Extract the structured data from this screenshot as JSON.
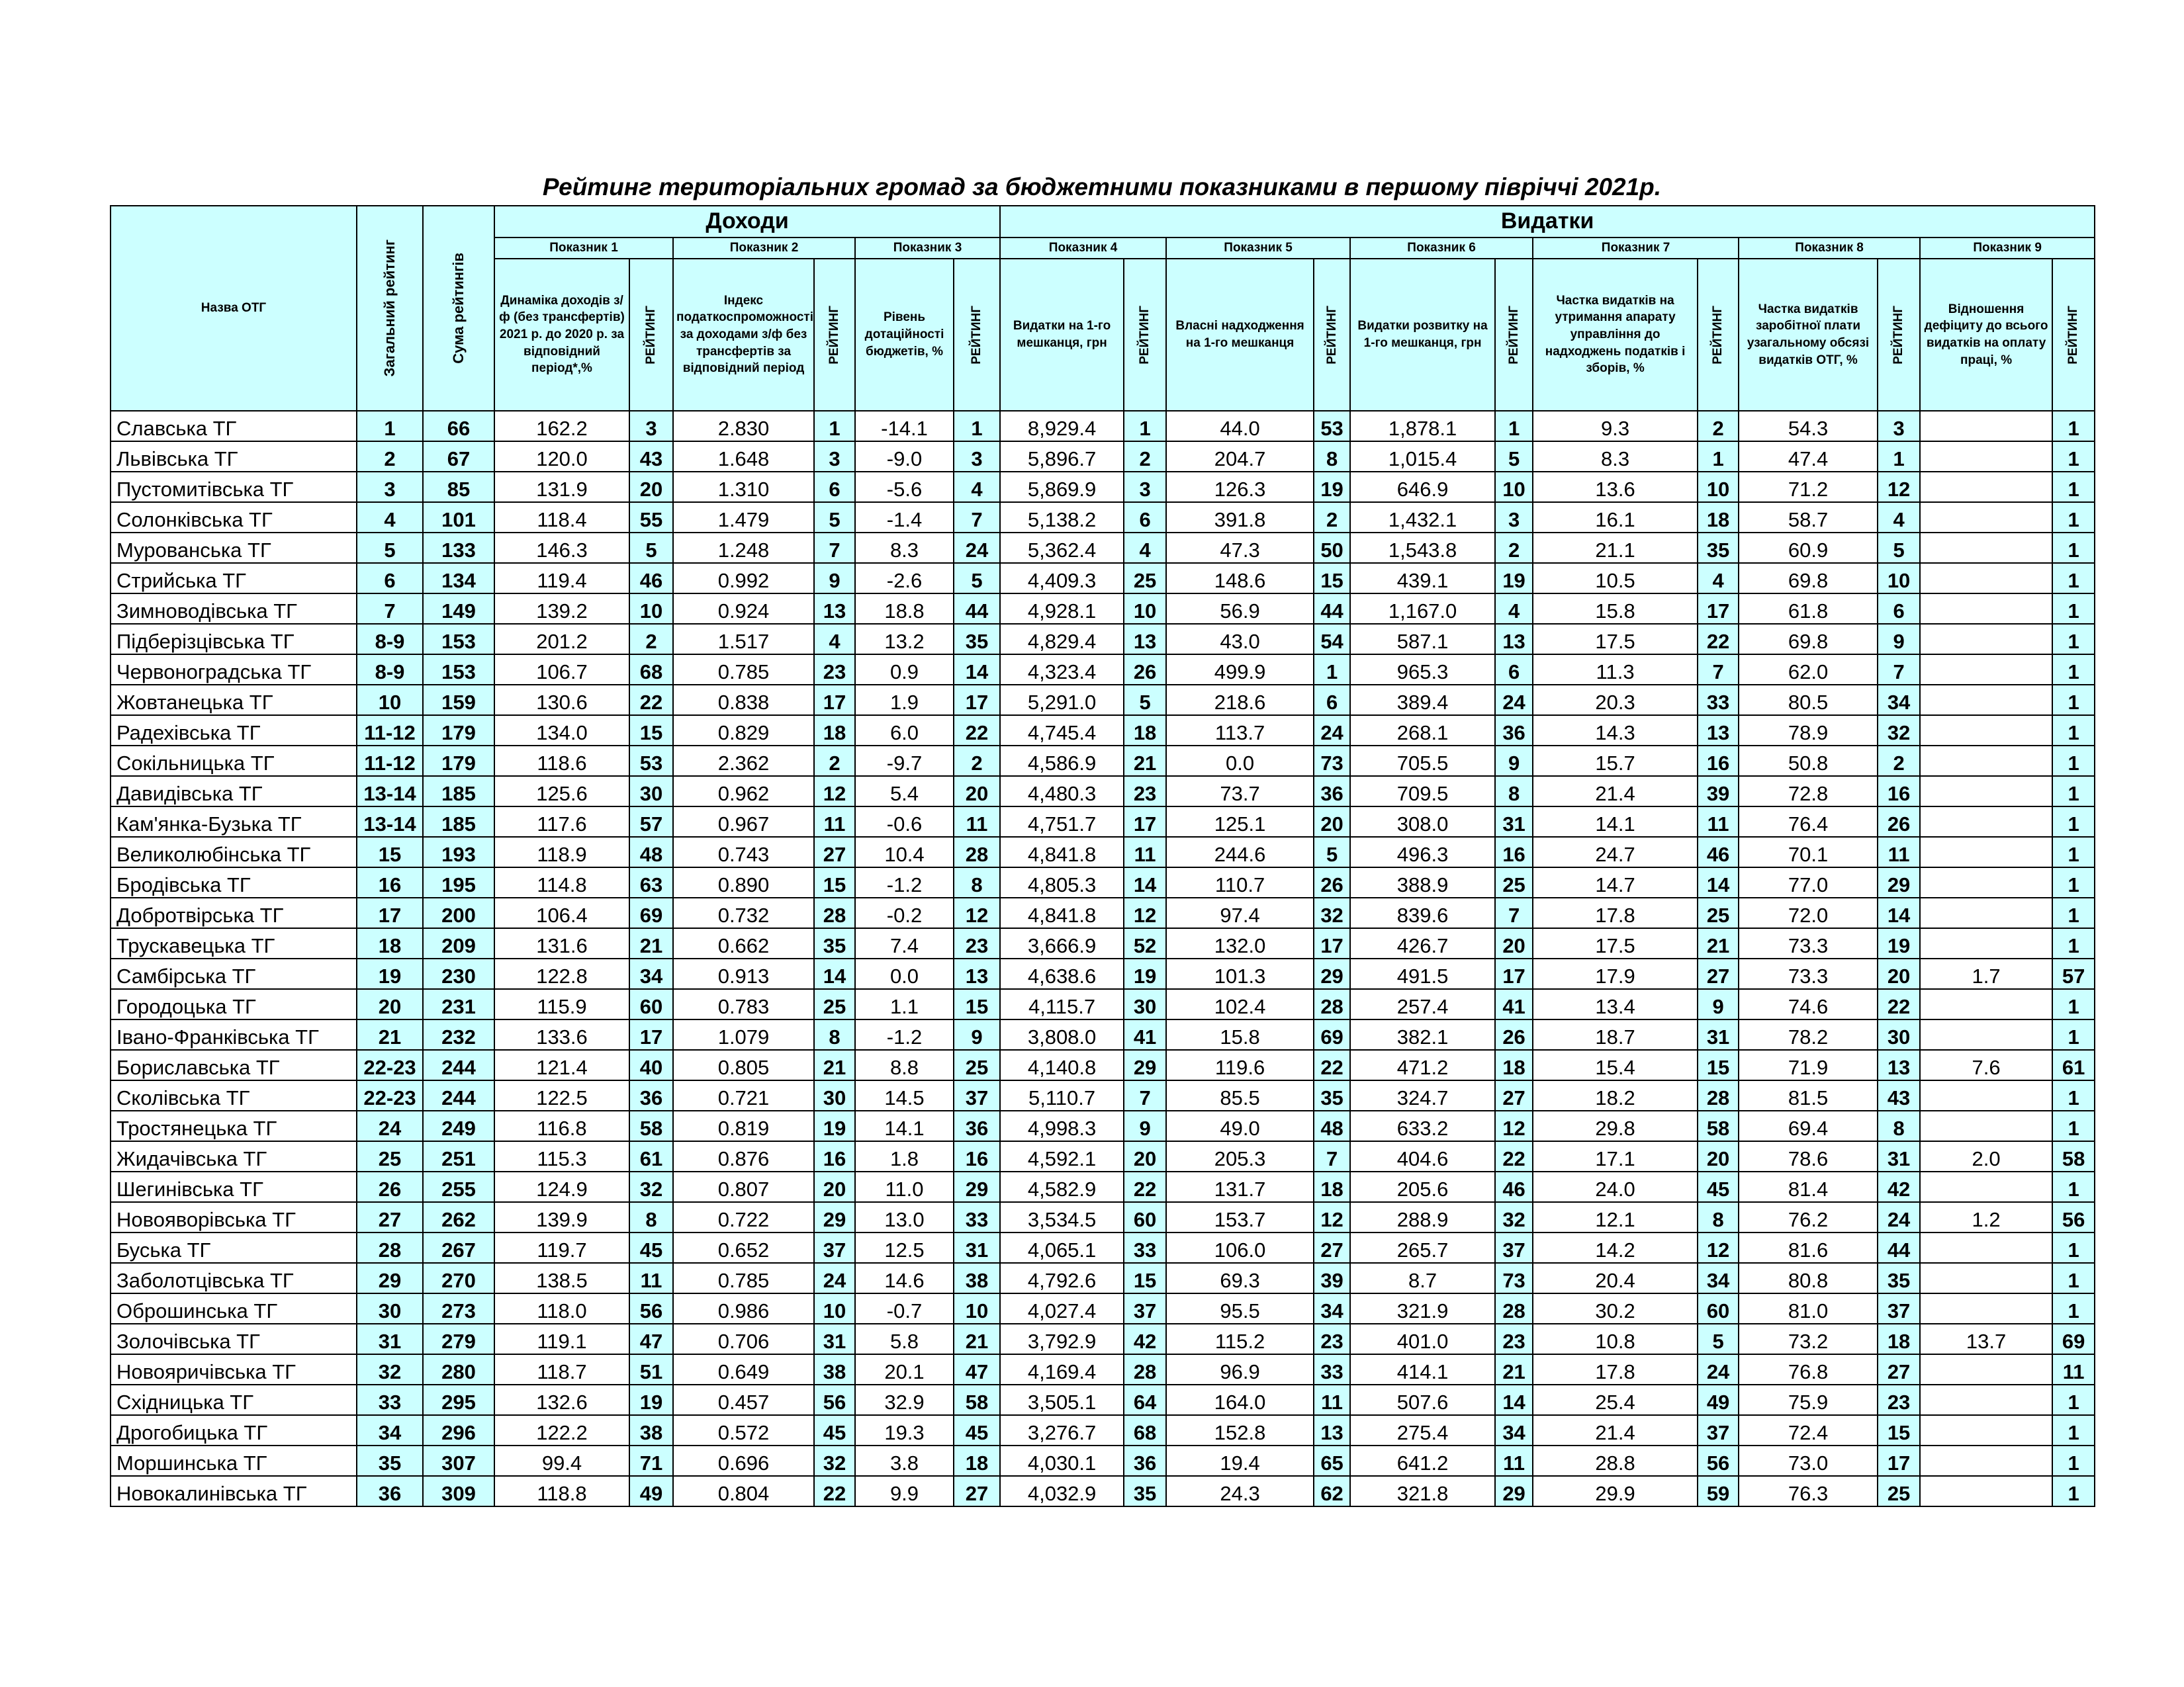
{
  "title": "Рейтинг територіальних громад за бюджетними показниками в першому півріччі 2021р.",
  "header": {
    "name": "Назва ОТГ",
    "overall": "Загальний рейтинг",
    "sum": "Сума рейтингів",
    "groups": [
      {
        "label": "Доходи",
        "span": 3
      },
      {
        "label": "Видатки",
        "span": 6
      }
    ],
    "indicators": [
      {
        "label": "Показник 1",
        "column": "Динаміка доходів з/ф (без трансфертів) 2021 р. до 2020 р. за відповідний період*,%",
        "rank": "РЕЙТИНГ"
      },
      {
        "label": "Показник 2",
        "column": "Індекс податкоспроможності за доходами з/ф без трансфертів за відповідний період",
        "rank": "РЕЙТИНГ"
      },
      {
        "label": "Показник 3",
        "column": "Рівень дотаційності бюджетів, %",
        "rank": "РЕЙТИНГ"
      },
      {
        "label": "Показник 4",
        "column": "Видатки на 1-го мешканця, грн",
        "rank": "РЕЙТИНГ"
      },
      {
        "label": "Показник 5",
        "column": "Власні надходження на 1-го мешканця",
        "rank": "РЕЙТИНГ"
      },
      {
        "label": "Показник 6",
        "column": "Видатки розвитку на 1-го мешканця, грн",
        "rank": "РЕЙТИНГ"
      },
      {
        "label": "Показник 7",
        "column": "Частка видатків на утримання апарату управління до надходжень податків і зборів, %",
        "rank": "РЕЙТИНГ"
      },
      {
        "label": "Показник 8",
        "column": "Частка видатків заробітної плати узагальному обсязі видатків ОТГ, %",
        "rank": "РЕЙТИНГ"
      },
      {
        "label": "Показник 9",
        "column": "Відношення дефіциту до всього видатків на оплату праці, %",
        "rank": "РЕЙТИНГ"
      }
    ]
  },
  "table": {
    "rows": [
      [
        "Славська ТГ",
        "1",
        "66",
        "162.2",
        "3",
        "2.830",
        "1",
        "-14.1",
        "1",
        "8,929.4",
        "1",
        "44.0",
        "53",
        "1,878.1",
        "1",
        "9.3",
        "2",
        "54.3",
        "3",
        null,
        "1"
      ],
      [
        "Львівська ТГ",
        "2",
        "67",
        "120.0",
        "43",
        "1.648",
        "3",
        "-9.0",
        "3",
        "5,896.7",
        "2",
        "204.7",
        "8",
        "1,015.4",
        "5",
        "8.3",
        "1",
        "47.4",
        "1",
        null,
        "1"
      ],
      [
        "Пустомитівська ТГ",
        "3",
        "85",
        "131.9",
        "20",
        "1.310",
        "6",
        "-5.6",
        "4",
        "5,869.9",
        "3",
        "126.3",
        "19",
        "646.9",
        "10",
        "13.6",
        "10",
        "71.2",
        "12",
        null,
        "1"
      ],
      [
        "Солонківська ТГ",
        "4",
        "101",
        "118.4",
        "55",
        "1.479",
        "5",
        "-1.4",
        "7",
        "5,138.2",
        "6",
        "391.8",
        "2",
        "1,432.1",
        "3",
        "16.1",
        "18",
        "58.7",
        "4",
        null,
        "1"
      ],
      [
        "Мурованська ТГ",
        "5",
        "133",
        "146.3",
        "5",
        "1.248",
        "7",
        "8.3",
        "24",
        "5,362.4",
        "4",
        "47.3",
        "50",
        "1,543.8",
        "2",
        "21.1",
        "35",
        "60.9",
        "5",
        null,
        "1"
      ],
      [
        "Стрийська ТГ",
        "6",
        "134",
        "119.4",
        "46",
        "0.992",
        "9",
        "-2.6",
        "5",
        "4,409.3",
        "25",
        "148.6",
        "15",
        "439.1",
        "19",
        "10.5",
        "4",
        "69.8",
        "10",
        null,
        "1"
      ],
      [
        "Зимноводівська ТГ",
        "7",
        "149",
        "139.2",
        "10",
        "0.924",
        "13",
        "18.8",
        "44",
        "4,928.1",
        "10",
        "56.9",
        "44",
        "1,167.0",
        "4",
        "15.8",
        "17",
        "61.8",
        "6",
        null,
        "1"
      ],
      [
        "Підберізцівська ТГ",
        "8-9",
        "153",
        "201.2",
        "2",
        "1.517",
        "4",
        "13.2",
        "35",
        "4,829.4",
        "13",
        "43.0",
        "54",
        "587.1",
        "13",
        "17.5",
        "22",
        "69.8",
        "9",
        null,
        "1"
      ],
      [
        "Червоноградська ТГ",
        "8-9",
        "153",
        "106.7",
        "68",
        "0.785",
        "23",
        "0.9",
        "14",
        "4,323.4",
        "26",
        "499.9",
        "1",
        "965.3",
        "6",
        "11.3",
        "7",
        "62.0",
        "7",
        null,
        "1"
      ],
      [
        "Жовтанецька ТГ",
        "10",
        "159",
        "130.6",
        "22",
        "0.838",
        "17",
        "1.9",
        "17",
        "5,291.0",
        "5",
        "218.6",
        "6",
        "389.4",
        "24",
        "20.3",
        "33",
        "80.5",
        "34",
        null,
        "1"
      ],
      [
        "Радехівська ТГ",
        "11-12",
        "179",
        "134.0",
        "15",
        "0.829",
        "18",
        "6.0",
        "22",
        "4,745.4",
        "18",
        "113.7",
        "24",
        "268.1",
        "36",
        "14.3",
        "13",
        "78.9",
        "32",
        null,
        "1"
      ],
      [
        "Сокільницька ТГ",
        "11-12",
        "179",
        "118.6",
        "53",
        "2.362",
        "2",
        "-9.7",
        "2",
        "4,586.9",
        "21",
        "0.0",
        "73",
        "705.5",
        "9",
        "15.7",
        "16",
        "50.8",
        "2",
        null,
        "1"
      ],
      [
        "Давидівська ТГ",
        "13-14",
        "185",
        "125.6",
        "30",
        "0.962",
        "12",
        "5.4",
        "20",
        "4,480.3",
        "23",
        "73.7",
        "36",
        "709.5",
        "8",
        "21.4",
        "39",
        "72.8",
        "16",
        null,
        "1"
      ],
      [
        "Кам'янка-Бузька ТГ",
        "13-14",
        "185",
        "117.6",
        "57",
        "0.967",
        "11",
        "-0.6",
        "11",
        "4,751.7",
        "17",
        "125.1",
        "20",
        "308.0",
        "31",
        "14.1",
        "11",
        "76.4",
        "26",
        null,
        "1"
      ],
      [
        "Великолюбінська ТГ",
        "15",
        "193",
        "118.9",
        "48",
        "0.743",
        "27",
        "10.4",
        "28",
        "4,841.8",
        "11",
        "244.6",
        "5",
        "496.3",
        "16",
        "24.7",
        "46",
        "70.1",
        "11",
        null,
        "1"
      ],
      [
        "Бродівська ТГ",
        "16",
        "195",
        "114.8",
        "63",
        "0.890",
        "15",
        "-1.2",
        "8",
        "4,805.3",
        "14",
        "110.7",
        "26",
        "388.9",
        "25",
        "14.7",
        "14",
        "77.0",
        "29",
        null,
        "1"
      ],
      [
        "Добротвірська ТГ",
        "17",
        "200",
        "106.4",
        "69",
        "0.732",
        "28",
        "-0.2",
        "12",
        "4,841.8",
        "12",
        "97.4",
        "32",
        "839.6",
        "7",
        "17.8",
        "25",
        "72.0",
        "14",
        null,
        "1"
      ],
      [
        "Трускавецька ТГ",
        "18",
        "209",
        "131.6",
        "21",
        "0.662",
        "35",
        "7.4",
        "23",
        "3,666.9",
        "52",
        "132.0",
        "17",
        "426.7",
        "20",
        "17.5",
        "21",
        "73.3",
        "19",
        null,
        "1"
      ],
      [
        "Самбірська ТГ",
        "19",
        "230",
        "122.8",
        "34",
        "0.913",
        "14",
        "0.0",
        "13",
        "4,638.6",
        "19",
        "101.3",
        "29",
        "491.5",
        "17",
        "17.9",
        "27",
        "73.3",
        "20",
        "1.7",
        "57"
      ],
      [
        "Городоцька ТГ",
        "20",
        "231",
        "115.9",
        "60",
        "0.783",
        "25",
        "1.1",
        "15",
        "4,115.7",
        "30",
        "102.4",
        "28",
        "257.4",
        "41",
        "13.4",
        "9",
        "74.6",
        "22",
        null,
        "1"
      ],
      [
        "Івано-Франківська ТГ",
        "21",
        "232",
        "133.6",
        "17",
        "1.079",
        "8",
        "-1.2",
        "9",
        "3,808.0",
        "41",
        "15.8",
        "69",
        "382.1",
        "26",
        "18.7",
        "31",
        "78.2",
        "30",
        null,
        "1"
      ],
      [
        "Бориславська ТГ",
        "22-23",
        "244",
        "121.4",
        "40",
        "0.805",
        "21",
        "8.8",
        "25",
        "4,140.8",
        "29",
        "119.6",
        "22",
        "471.2",
        "18",
        "15.4",
        "15",
        "71.9",
        "13",
        "7.6",
        "61"
      ],
      [
        "Сколівська ТГ",
        "22-23",
        "244",
        "122.5",
        "36",
        "0.721",
        "30",
        "14.5",
        "37",
        "5,110.7",
        "7",
        "85.5",
        "35",
        "324.7",
        "27",
        "18.2",
        "28",
        "81.5",
        "43",
        null,
        "1"
      ],
      [
        "Тростянецька ТГ",
        "24",
        "249",
        "116.8",
        "58",
        "0.819",
        "19",
        "14.1",
        "36",
        "4,998.3",
        "9",
        "49.0",
        "48",
        "633.2",
        "12",
        "29.8",
        "58",
        "69.4",
        "8",
        null,
        "1"
      ],
      [
        "Жидачівська ТГ",
        "25",
        "251",
        "115.3",
        "61",
        "0.876",
        "16",
        "1.8",
        "16",
        "4,592.1",
        "20",
        "205.3",
        "7",
        "404.6",
        "22",
        "17.1",
        "20",
        "78.6",
        "31",
        "2.0",
        "58"
      ],
      [
        "Шегинівська ТГ",
        "26",
        "255",
        "124.9",
        "32",
        "0.807",
        "20",
        "11.0",
        "29",
        "4,582.9",
        "22",
        "131.7",
        "18",
        "205.6",
        "46",
        "24.0",
        "45",
        "81.4",
        "42",
        null,
        "1"
      ],
      [
        "Новояворівська ТГ",
        "27",
        "262",
        "139.9",
        "8",
        "0.722",
        "29",
        "13.0",
        "33",
        "3,534.5",
        "60",
        "153.7",
        "12",
        "288.9",
        "32",
        "12.1",
        "8",
        "76.2",
        "24",
        "1.2",
        "56"
      ],
      [
        "Буська ТГ",
        "28",
        "267",
        "119.7",
        "45",
        "0.652",
        "37",
        "12.5",
        "31",
        "4,065.1",
        "33",
        "106.0",
        "27",
        "265.7",
        "37",
        "14.2",
        "12",
        "81.6",
        "44",
        null,
        "1"
      ],
      [
        "Заболотцівська ТГ",
        "29",
        "270",
        "138.5",
        "11",
        "0.785",
        "24",
        "14.6",
        "38",
        "4,792.6",
        "15",
        "69.3",
        "39",
        "8.7",
        "73",
        "20.4",
        "34",
        "80.8",
        "35",
        null,
        "1"
      ],
      [
        "Оброшинська ТГ",
        "30",
        "273",
        "118.0",
        "56",
        "0.986",
        "10",
        "-0.7",
        "10",
        "4,027.4",
        "37",
        "95.5",
        "34",
        "321.9",
        "28",
        "30.2",
        "60",
        "81.0",
        "37",
        null,
        "1"
      ],
      [
        "Золочівська ТГ",
        "31",
        "279",
        "119.1",
        "47",
        "0.706",
        "31",
        "5.8",
        "21",
        "3,792.9",
        "42",
        "115.2",
        "23",
        "401.0",
        "23",
        "10.8",
        "5",
        "73.2",
        "18",
        "13.7",
        "69"
      ],
      [
        "Новояричівська ТГ",
        "32",
        "280",
        "118.7",
        "51",
        "0.649",
        "38",
        "20.1",
        "47",
        "4,169.4",
        "28",
        "96.9",
        "33",
        "414.1",
        "21",
        "17.8",
        "24",
        "76.8",
        "27",
        null,
        "11"
      ],
      [
        "Східницька ТГ",
        "33",
        "295",
        "132.6",
        "19",
        "0.457",
        "56",
        "32.9",
        "58",
        "3,505.1",
        "64",
        "164.0",
        "11",
        "507.6",
        "14",
        "25.4",
        "49",
        "75.9",
        "23",
        null,
        "1"
      ],
      [
        "Дрогобицька ТГ",
        "34",
        "296",
        "122.2",
        "38",
        "0.572",
        "45",
        "19.3",
        "45",
        "3,276.7",
        "68",
        "152.8",
        "13",
        "275.4",
        "34",
        "21.4",
        "37",
        "72.4",
        "15",
        null,
        "1"
      ],
      [
        "Моршинська ТГ",
        "35",
        "307",
        "99.4",
        "71",
        "0.696",
        "32",
        "3.8",
        "18",
        "4,030.1",
        "36",
        "19.4",
        "65",
        "641.2",
        "11",
        "28.8",
        "56",
        "73.0",
        "17",
        null,
        "1"
      ],
      [
        "Новокалинівська ТГ",
        "36",
        "309",
        "118.8",
        "49",
        "0.804",
        "22",
        "9.9",
        "27",
        "4,032.9",
        "35",
        "24.3",
        "62",
        "321.8",
        "29",
        "29.9",
        "59",
        "76.3",
        "25",
        null,
        "1"
      ]
    ]
  }
}
